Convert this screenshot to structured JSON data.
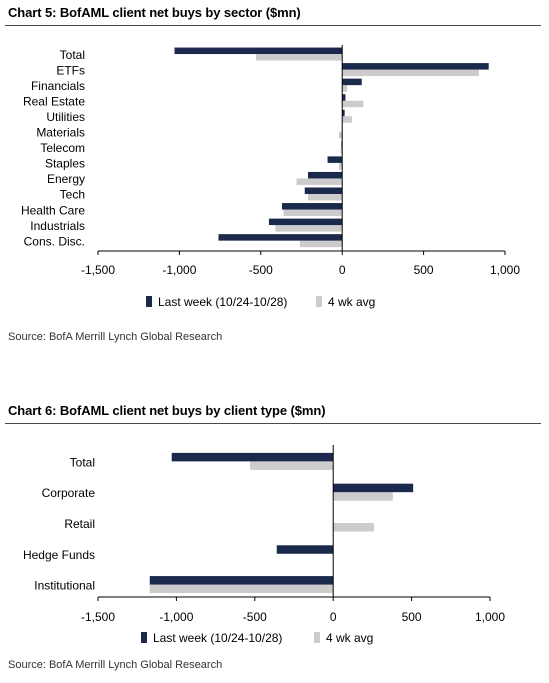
{
  "colors": {
    "last_week": "#1b2a4c",
    "avg": "#cccccc",
    "axis": "#000000"
  },
  "chart_data": [
    {
      "type": "bar",
      "orientation": "horizontal",
      "title": "Chart 5: BofAML client net buys by sector ($mn)",
      "source": "Source: BofA Merrill Lynch Global Research",
      "categories": [
        "Total",
        "ETFs",
        "Financials",
        "Real Estate",
        "Utilities",
        "Materials",
        "Telecom",
        "Staples",
        "Energy",
        "Tech",
        "Health Care",
        "Industrials",
        "Cons. Disc."
      ],
      "series": [
        {
          "name": "Last week (10/24-10/28)",
          "values": [
            -1030,
            900,
            120,
            20,
            15,
            0,
            -5,
            -90,
            -210,
            -230,
            -370,
            -450,
            -760
          ]
        },
        {
          "name": "4 wk avg",
          "values": [
            -530,
            840,
            30,
            130,
            60,
            -20,
            -10,
            -20,
            -280,
            -210,
            -360,
            -410,
            -260
          ]
        }
      ],
      "xlim": [
        -1500,
        1000
      ],
      "xticks": [
        -1500,
        -1000,
        -500,
        0,
        500,
        1000
      ],
      "xtick_labels": [
        "-1,500",
        "-1,000",
        "-500",
        "0",
        "500",
        "1,000"
      ],
      "legend_position": "bottom",
      "grid": false
    },
    {
      "type": "bar",
      "orientation": "horizontal",
      "title": "Chart 6: BofAML client net buys by client type ($mn)",
      "source": "Source: BofA Merrill Lynch Global Research",
      "categories": [
        "Total",
        "Corporate",
        "Retail",
        "Hedge Funds",
        "Institutional"
      ],
      "series": [
        {
          "name": "Last week (10/24-10/28)",
          "values": [
            -1030,
            510,
            0,
            -360,
            -1170
          ]
        },
        {
          "name": "4 wk avg",
          "values": [
            -530,
            380,
            260,
            0,
            -1170
          ]
        }
      ],
      "xlim": [
        -1500,
        1000
      ],
      "xticks": [
        -1500,
        -1000,
        -500,
        0,
        500,
        1000
      ],
      "xtick_labels": [
        "-1,500",
        "-1,000",
        "-500",
        "0",
        "500",
        "1,000"
      ],
      "legend_position": "bottom",
      "grid": false
    }
  ]
}
